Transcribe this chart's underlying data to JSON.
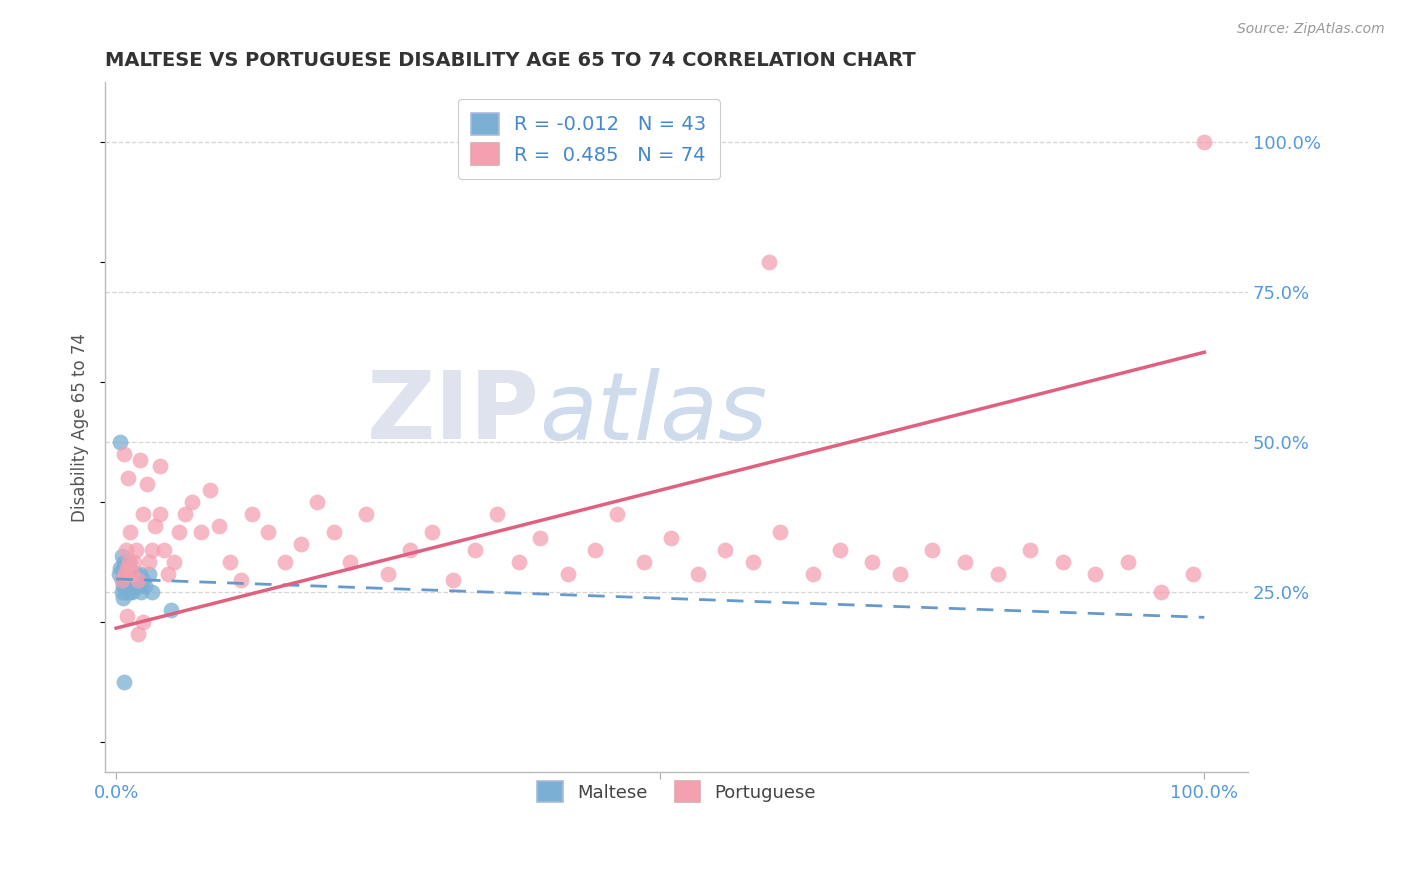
{
  "title": "MALTESE VS PORTUGUESE DISABILITY AGE 65 TO 74 CORRELATION CHART",
  "source_text": "Source: ZipAtlas.com",
  "ylabel": "Disability Age 65 to 74",
  "watermark_zip": "ZIP",
  "watermark_atlas": "atlas",
  "maltese_R": -0.012,
  "maltese_N": 43,
  "portuguese_R": 0.485,
  "portuguese_N": 74,
  "xlim": [
    -0.01,
    1.04
  ],
  "ylim": [
    -0.05,
    1.1
  ],
  "ytick_values": [
    0.25,
    0.5,
    0.75,
    1.0
  ],
  "ytick_labels": [
    "25.0%",
    "50.0%",
    "75.0%",
    "100.0%"
  ],
  "grid_color": "#cccccc",
  "background_color": "#ffffff",
  "maltese_color": "#7bafd4",
  "portuguese_color": "#f4a0b0",
  "maltese_line_color": "#6699cc",
  "portuguese_line_color": "#e06080",
  "title_color": "#333333",
  "axis_label_color": "#555555",
  "tick_label_color_blue": "#5599dd",
  "legend_R_color": "#4488cc",
  "maltese_scatter_x": [
    0.003,
    0.004,
    0.005,
    0.005,
    0.006,
    0.006,
    0.007,
    0.007,
    0.008,
    0.008,
    0.009,
    0.009,
    0.01,
    0.01,
    0.01,
    0.011,
    0.011,
    0.012,
    0.012,
    0.013,
    0.013,
    0.014,
    0.014,
    0.015,
    0.015,
    0.016,
    0.017,
    0.018,
    0.019,
    0.02,
    0.021,
    0.022,
    0.023,
    0.025,
    0.027,
    0.03,
    0.033,
    0.004,
    0.05,
    0.005,
    0.006,
    0.007,
    0.012
  ],
  "maltese_scatter_y": [
    0.28,
    0.29,
    0.25,
    0.27,
    0.26,
    0.29,
    0.27,
    0.3,
    0.26,
    0.28,
    0.25,
    0.27,
    0.28,
    0.26,
    0.27,
    0.25,
    0.28,
    0.26,
    0.29,
    0.25,
    0.27,
    0.26,
    0.28,
    0.27,
    0.25,
    0.26,
    0.27,
    0.28,
    0.26,
    0.27,
    0.26,
    0.28,
    0.25,
    0.27,
    0.26,
    0.28,
    0.25,
    0.5,
    0.22,
    0.31,
    0.24,
    0.1,
    0.3
  ],
  "portuguese_scatter_x": [
    0.005,
    0.007,
    0.008,
    0.009,
    0.01,
    0.011,
    0.012,
    0.013,
    0.015,
    0.016,
    0.018,
    0.02,
    0.022,
    0.025,
    0.028,
    0.03,
    0.033,
    0.036,
    0.04,
    0.044,
    0.048,
    0.053,
    0.058,
    0.063,
    0.07,
    0.078,
    0.086,
    0.095,
    0.105,
    0.115,
    0.125,
    0.14,
    0.155,
    0.17,
    0.185,
    0.2,
    0.215,
    0.23,
    0.25,
    0.27,
    0.29,
    0.31,
    0.33,
    0.35,
    0.37,
    0.39,
    0.415,
    0.44,
    0.46,
    0.485,
    0.51,
    0.535,
    0.56,
    0.585,
    0.61,
    0.64,
    0.665,
    0.695,
    0.72,
    0.75,
    0.78,
    0.81,
    0.84,
    0.87,
    0.9,
    0.93,
    0.96,
    0.99,
    0.01,
    0.02,
    0.025,
    0.6,
    0.04,
    1.0
  ],
  "portuguese_scatter_y": [
    0.27,
    0.48,
    0.28,
    0.32,
    0.29,
    0.44,
    0.3,
    0.35,
    0.28,
    0.3,
    0.32,
    0.27,
    0.47,
    0.38,
    0.43,
    0.3,
    0.32,
    0.36,
    0.38,
    0.32,
    0.28,
    0.3,
    0.35,
    0.38,
    0.4,
    0.35,
    0.42,
    0.36,
    0.3,
    0.27,
    0.38,
    0.35,
    0.3,
    0.33,
    0.4,
    0.35,
    0.3,
    0.38,
    0.28,
    0.32,
    0.35,
    0.27,
    0.32,
    0.38,
    0.3,
    0.34,
    0.28,
    0.32,
    0.38,
    0.3,
    0.34,
    0.28,
    0.32,
    0.3,
    0.35,
    0.28,
    0.32,
    0.3,
    0.28,
    0.32,
    0.3,
    0.28,
    0.32,
    0.3,
    0.28,
    0.3,
    0.25,
    0.28,
    0.21,
    0.18,
    0.2,
    0.8,
    0.46,
    1.0
  ],
  "maltese_line_x0": 0.0,
  "maltese_line_x1": 1.0,
  "maltese_line_y0": 0.272,
  "maltese_line_y1": 0.208,
  "portuguese_line_x0": 0.0,
  "portuguese_line_x1": 1.0,
  "portuguese_line_y0": 0.19,
  "portuguese_line_y1": 0.65
}
